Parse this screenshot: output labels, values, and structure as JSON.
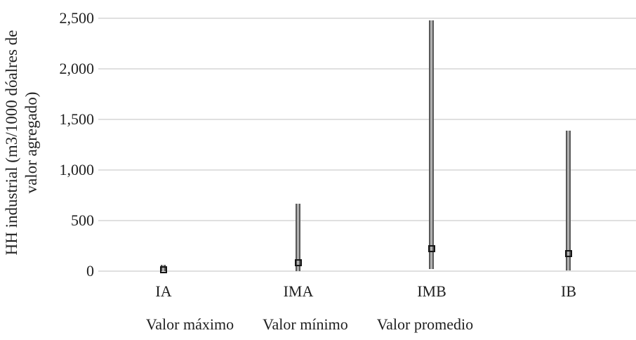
{
  "chart_data": {
    "type": "line",
    "subtype": "high-low-with-markers",
    "title": "",
    "xlabel": "",
    "ylabel": "HH industrial (m3/1000 dóalres de valor agregado)",
    "ylabel_lines": [
      "HH industrial (m3/1000 dóalres de",
      "valor agregado)"
    ],
    "categories": [
      "IA",
      "IMA",
      "IMB",
      "IB"
    ],
    "series": [
      {
        "name": "Valor máximo",
        "role": "high",
        "values": [
          60,
          670,
          2480,
          1390
        ]
      },
      {
        "name": "Valor mínimo",
        "role": "low",
        "values": [
          0,
          0,
          20,
          5
        ]
      },
      {
        "name": "Valor promedio",
        "role": "marker",
        "values": [
          17,
          85,
          220,
          175
        ]
      }
    ],
    "ylim": [
      0,
      2500
    ],
    "yticks": [
      {
        "value": 0,
        "label": "0"
      },
      {
        "value": 500,
        "label": "500"
      },
      {
        "value": 1000,
        "label": "1,000"
      },
      {
        "value": 1500,
        "label": "1,500"
      },
      {
        "value": 2000,
        "label": "2,000"
      },
      {
        "value": 2500,
        "label": "2,500"
      }
    ],
    "grid": true,
    "legend_position": "bottom",
    "legend": [
      "Valor máximo",
      "Valor mínimo",
      "Valor promedio"
    ]
  },
  "colors": {
    "background": "#ffffff",
    "text": "#1f1f1f",
    "gridline": "#e0e0e0",
    "hilo_edge": "#595959",
    "hilo_center": "#b0b0b0",
    "marker_border": "#161616"
  }
}
